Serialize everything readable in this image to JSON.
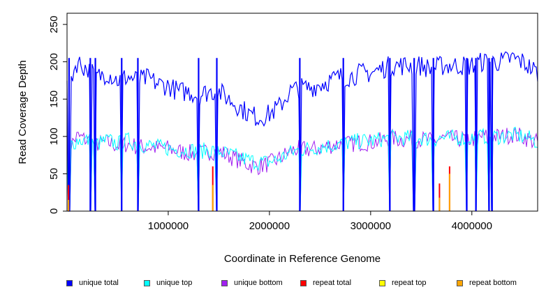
{
  "chart_data": {
    "type": "line",
    "title": "",
    "xlabel": "Coordinate in Reference Genome",
    "ylabel": "Read Coverage Depth",
    "xlim": [
      0,
      4650000
    ],
    "ylim": [
      0,
      265
    ],
    "x_ticks": [
      1000000,
      2000000,
      3000000,
      4000000
    ],
    "x_tick_labels": [
      "1000000",
      "2000000",
      "3000000",
      "4000000"
    ],
    "y_ticks": [
      0,
      50,
      100,
      150,
      200,
      250
    ],
    "y_tick_labels": [
      "0",
      "50",
      "100",
      "150",
      "200",
      "250"
    ],
    "grid": false,
    "legend_position": "bottom",
    "series": [
      {
        "name": "unique total",
        "color": "#0000ff",
        "x": [
          0,
          100000,
          200000,
          300000,
          400000,
          500000,
          600000,
          700000,
          800000,
          900000,
          1000000,
          1100000,
          1200000,
          1300000,
          1400000,
          1500000,
          1600000,
          1700000,
          1800000,
          1900000,
          2000000,
          2100000,
          2200000,
          2300000,
          2400000,
          2500000,
          2600000,
          2700000,
          2800000,
          2900000,
          3000000,
          3100000,
          3200000,
          3300000,
          3400000,
          3500000,
          3600000,
          3700000,
          3800000,
          3900000,
          4000000,
          4100000,
          4200000,
          4300000,
          4400000,
          4500000,
          4600000,
          4650000
        ],
        "values": [
          165,
          200,
          190,
          180,
          185,
          175,
          180,
          175,
          178,
          170,
          168,
          160,
          160,
          155,
          160,
          160,
          150,
          140,
          130,
          125,
          130,
          140,
          160,
          165,
          165,
          170,
          175,
          180,
          180,
          185,
          185,
          190,
          195,
          195,
          195,
          195,
          190,
          195,
          195,
          195,
          195,
          200,
          200,
          200,
          205,
          200,
          190,
          185
        ]
      },
      {
        "name": "unique top",
        "color": "#00ffff",
        "x": [
          0,
          100000,
          200000,
          300000,
          400000,
          500000,
          600000,
          700000,
          800000,
          900000,
          1000000,
          1100000,
          1200000,
          1300000,
          1400000,
          1500000,
          1600000,
          1700000,
          1800000,
          1900000,
          2000000,
          2100000,
          2200000,
          2300000,
          2400000,
          2500000,
          2600000,
          2700000,
          2800000,
          2900000,
          3000000,
          3100000,
          3200000,
          3300000,
          3400000,
          3500000,
          3600000,
          3700000,
          3800000,
          3900000,
          4000000,
          4100000,
          4200000,
          4300000,
          4400000,
          4500000,
          4600000,
          4650000
        ],
        "values": [
          85,
          95,
          95,
          90,
          95,
          90,
          95,
          90,
          88,
          86,
          84,
          82,
          82,
          80,
          82,
          80,
          76,
          72,
          68,
          65,
          66,
          70,
          78,
          82,
          84,
          86,
          88,
          90,
          92,
          94,
          94,
          96,
          98,
          98,
          98,
          98,
          96,
          98,
          98,
          98,
          98,
          100,
          100,
          100,
          102,
          100,
          96,
          92
        ]
      },
      {
        "name": "unique bottom",
        "color": "#a020f0",
        "x": [
          0,
          100000,
          200000,
          300000,
          400000,
          500000,
          600000,
          700000,
          800000,
          900000,
          1000000,
          1100000,
          1200000,
          1300000,
          1400000,
          1500000,
          1600000,
          1700000,
          1800000,
          1900000,
          2000000,
          2100000,
          2200000,
          2300000,
          2400000,
          2500000,
          2600000,
          2700000,
          2800000,
          2900000,
          3000000,
          3100000,
          3200000,
          3300000,
          3400000,
          3500000,
          3600000,
          3700000,
          3800000,
          3900000,
          4000000,
          4100000,
          4200000,
          4300000,
          4400000,
          4500000,
          4600000,
          4650000
        ],
        "values": [
          82,
          100,
          95,
          90,
          92,
          88,
          90,
          86,
          86,
          84,
          84,
          80,
          78,
          76,
          80,
          80,
          74,
          68,
          62,
          60,
          64,
          70,
          80,
          84,
          82,
          84,
          88,
          90,
          90,
          92,
          92,
          94,
          98,
          96,
          97,
          96,
          94,
          97,
          96,
          97,
          96,
          100,
          100,
          100,
          103,
          100,
          94,
          92
        ]
      },
      {
        "name": "repeat total",
        "color": "#ff0000",
        "x": [
          0,
          4650000
        ],
        "values": [
          0,
          0
        ]
      },
      {
        "name": "repeat top",
        "color": "#ffff00",
        "x": [
          0,
          4650000
        ],
        "values": [
          0,
          0
        ]
      },
      {
        "name": "repeat bottom",
        "color": "#ffa500",
        "x": [
          0,
          4650000
        ],
        "values": [
          0,
          0
        ]
      }
    ],
    "drops": {
      "x": [
        20000,
        230000,
        280000,
        540000,
        700000,
        1300000,
        1480000,
        2300000,
        2730000,
        3190000,
        3430000,
        3620000,
        3950000,
        4040000,
        4170000,
        4200000
      ],
      "values": [
        0,
        0,
        0,
        0,
        0,
        0,
        0,
        0,
        0,
        0,
        0,
        0,
        0,
        0,
        0,
        0
      ]
    },
    "repeat_spikes": [
      {
        "x": 15000,
        "total": 35,
        "bottom": 15
      },
      {
        "x": 1440000,
        "total": 60,
        "bottom": 35
      },
      {
        "x": 3680000,
        "total": 37,
        "bottom": 18
      },
      {
        "x": 3780000,
        "total": 60,
        "bottom": 50
      }
    ]
  }
}
